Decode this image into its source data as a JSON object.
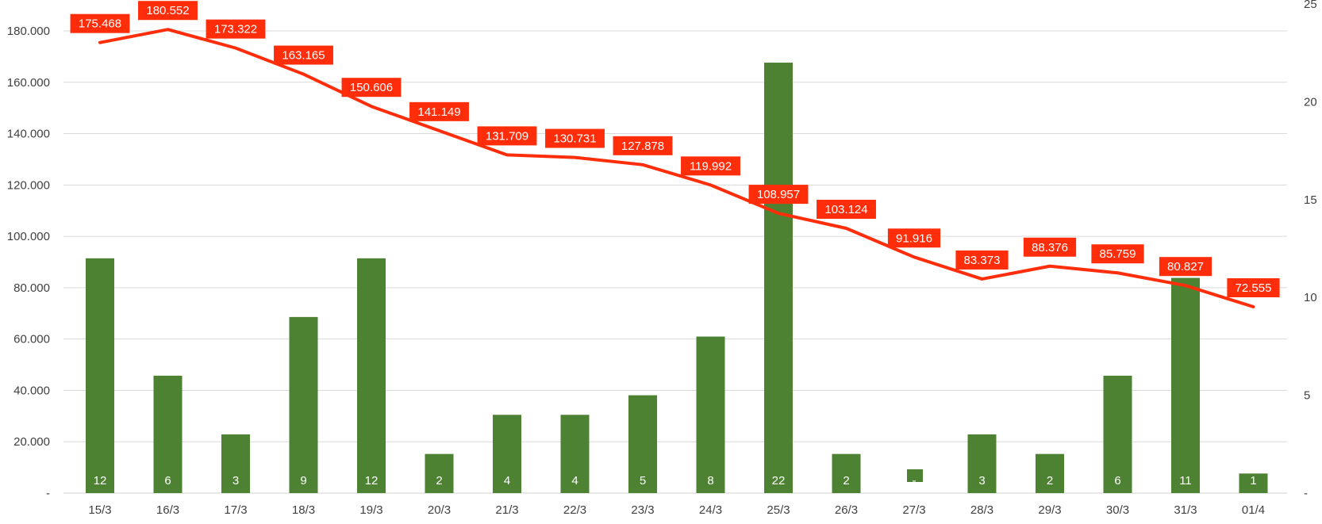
{
  "chart_data": {
    "type": "bar",
    "title": "",
    "xlabel": "",
    "ylabel": "",
    "categories": [
      "15/3",
      "16/3",
      "17/3",
      "18/3",
      "19/3",
      "20/3",
      "21/3",
      "22/3",
      "23/3",
      "24/3",
      "25/3",
      "26/3",
      "27/3",
      "28/3",
      "29/3",
      "30/3",
      "31/3",
      "01/4"
    ],
    "series": [
      {
        "type": "bar",
        "axis": "right",
        "color": "#4d8233",
        "values": [
          12,
          6,
          3,
          9,
          12,
          2,
          4,
          4,
          5,
          8,
          22,
          2,
          0,
          3,
          2,
          6,
          11,
          1
        ],
        "data_labels": [
          "12",
          "6",
          "3",
          "9",
          "12",
          "2",
          "4",
          "4",
          "5",
          "8",
          "22",
          "2",
          "-",
          "3",
          "2",
          "6",
          "11",
          "1"
        ]
      },
      {
        "type": "line",
        "axis": "left",
        "color": "#ff2d0a",
        "values": [
          175468,
          180552,
          173322,
          163165,
          150606,
          141149,
          131709,
          130731,
          127878,
          119992,
          108957,
          103124,
          91916,
          83373,
          88376,
          85759,
          80827,
          72555
        ],
        "data_labels": [
          "175.468",
          "180.552",
          "173.322",
          "163.165",
          "150.606",
          "141.149",
          "131.709",
          "130.731",
          "127.878",
          "119.992",
          "108.957",
          "103.124",
          "91.916",
          "83.373",
          "88.376",
          "85.759",
          "80.827",
          "72.555"
        ]
      }
    ],
    "left_axis": {
      "ylim": [
        0,
        180000
      ],
      "ticks": [
        0,
        20000,
        40000,
        60000,
        80000,
        100000,
        120000,
        140000,
        160000,
        180000
      ],
      "tick_labels": [
        "-",
        "20.000",
        "40.000",
        "60.000",
        "80.000",
        "100.000",
        "120.000",
        "140.000",
        "160.000",
        "180.000"
      ]
    },
    "right_axis": {
      "ylim": [
        0,
        25
      ],
      "ticks": [
        0,
        5,
        10,
        15,
        20,
        25
      ],
      "tick_labels": [
        "-",
        "5",
        "10",
        "15",
        "20",
        "25"
      ]
    },
    "grid": true,
    "legend": "none"
  }
}
